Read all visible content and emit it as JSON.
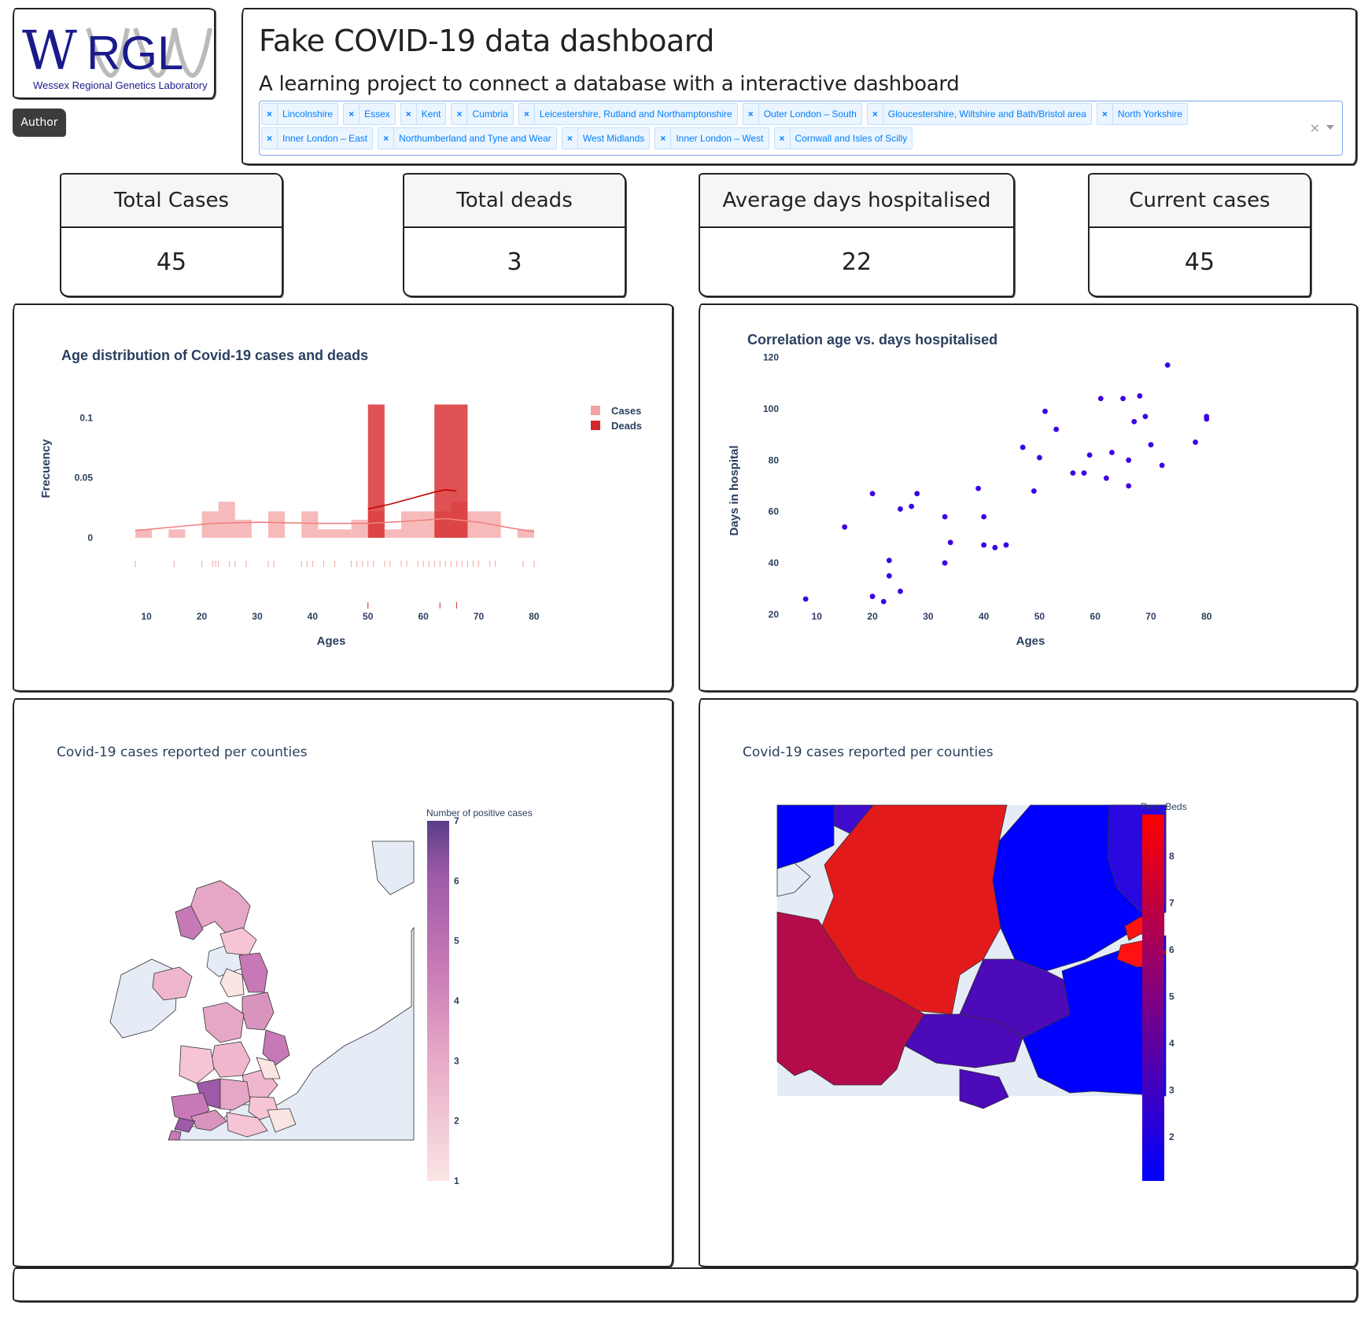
{
  "logo": {
    "text": "WRGL",
    "subtitle": "Wessex Regional Genetics Laboratory"
  },
  "author_button": "Author",
  "header": {
    "title": "Fake COVID-19 data dashboard",
    "subtitle": "A learning project to connect a database with a interactive dashboard"
  },
  "county_select": {
    "selected": [
      "Lincolnshire",
      "Essex",
      "Kent",
      "Cumbria",
      "Leicestershire, Rutland and Northamptonshire",
      "Outer London – South",
      "Gloucestershire, Wiltshire and Bath/Bristol area",
      "North Yorkshire",
      "Inner London – East",
      "Northumberland and Tyne and Wear",
      "West Midlands",
      "Inner London – West",
      "Cornwall and Isles of Scilly"
    ],
    "clear_icon": "×"
  },
  "kpis": [
    {
      "label": "Total Cases",
      "value": "45"
    },
    {
      "label": "Total deads",
      "value": "3"
    },
    {
      "label": "Average days hospitalised",
      "value": "22"
    },
    {
      "label": "Current cases",
      "value": "45"
    }
  ],
  "chart_data": [
    {
      "type": "bar",
      "title": "Age distribution of Covid-19 cases and deads",
      "xlabel": "Ages",
      "ylabel": "Frecuency",
      "xlim": [
        6,
        82
      ],
      "ylim": [
        0,
        0.11
      ],
      "xticks": [
        10,
        20,
        30,
        40,
        50,
        60,
        70,
        80
      ],
      "yticks": [
        0,
        0.05,
        0.1
      ],
      "ytick_labels": [
        "0",
        "0.05",
        "0.1"
      ],
      "legend": "top-right",
      "series": [
        {
          "name": "Cases",
          "color": "#f4a3a3",
          "bins": [
            {
              "x0": 8,
              "x1": 11,
              "y": 0.007
            },
            {
              "x0": 14,
              "x1": 17,
              "y": 0.007
            },
            {
              "x0": 20,
              "x1": 23,
              "y": 0.022
            },
            {
              "x0": 23,
              "x1": 26,
              "y": 0.03
            },
            {
              "x0": 26,
              "x1": 29,
              "y": 0.015
            },
            {
              "x0": 32,
              "x1": 35,
              "y": 0.022
            },
            {
              "x0": 38,
              "x1": 41,
              "y": 0.022
            },
            {
              "x0": 41,
              "x1": 44,
              "y": 0.007
            },
            {
              "x0": 44,
              "x1": 47,
              "y": 0.007
            },
            {
              "x0": 47,
              "x1": 50,
              "y": 0.015
            },
            {
              "x0": 50,
              "x1": 53,
              "y": 0.022
            },
            {
              "x0": 53,
              "x1": 56,
              "y": 0.007
            },
            {
              "x0": 56,
              "x1": 59,
              "y": 0.022
            },
            {
              "x0": 59,
              "x1": 62,
              "y": 0.022
            },
            {
              "x0": 62,
              "x1": 65,
              "y": 0.022
            },
            {
              "x0": 65,
              "x1": 68,
              "y": 0.03
            },
            {
              "x0": 68,
              "x1": 71,
              "y": 0.022
            },
            {
              "x0": 71,
              "x1": 74,
              "y": 0.022
            },
            {
              "x0": 77,
              "x1": 80,
              "y": 0.007
            }
          ],
          "kde": [
            [
              8,
              0.006
            ],
            [
              15,
              0.009
            ],
            [
              22,
              0.012
            ],
            [
              30,
              0.013
            ],
            [
              40,
              0.012
            ],
            [
              50,
              0.012
            ],
            [
              58,
              0.014
            ],
            [
              64,
              0.016
            ],
            [
              70,
              0.013
            ],
            [
              76,
              0.008
            ],
            [
              80,
              0.005
            ]
          ],
          "rug": [
            8,
            15,
            20,
            22,
            22.5,
            23,
            25,
            26,
            28,
            32,
            33,
            38,
            39,
            40,
            42,
            44,
            47,
            48,
            49,
            50,
            51,
            53,
            54,
            56,
            57,
            59,
            60,
            61,
            62,
            63,
            64,
            65,
            66,
            67,
            68,
            69,
            70,
            72,
            73,
            78,
            80
          ]
        },
        {
          "name": "Deads",
          "color": "#d62728",
          "bins": [
            {
              "x0": 50,
              "x1": 53,
              "y": 0.111
            },
            {
              "x0": 62,
              "x1": 68,
              "y": 0.111
            }
          ],
          "kde": [
            [
              50,
              0.024
            ],
            [
              54,
              0.028
            ],
            [
              58,
              0.033
            ],
            [
              62,
              0.038
            ],
            [
              64,
              0.04
            ],
            [
              66,
              0.039
            ]
          ],
          "rug": [
            50,
            63,
            66
          ]
        }
      ]
    },
    {
      "type": "scatter",
      "title": "Correlation age vs. days hospitalised",
      "xlabel": "Ages",
      "ylabel": "Days in hospital",
      "xlim": [
        6,
        83
      ],
      "ylim": [
        18,
        122
      ],
      "xticks": [
        10,
        20,
        30,
        40,
        50,
        60,
        70,
        80
      ],
      "yticks": [
        20,
        40,
        60,
        80,
        100,
        120
      ],
      "color": "#3b00e6",
      "x": [
        8,
        15,
        20,
        20,
        22,
        23,
        23,
        25,
        25,
        27,
        28,
        33,
        33,
        34,
        39,
        40,
        40,
        42,
        44,
        47,
        49,
        50,
        51,
        53,
        56,
        58,
        59,
        61,
        62,
        63,
        65,
        66,
        66,
        67,
        68,
        69,
        70,
        72,
        73,
        78,
        80,
        80
      ],
      "y": [
        26,
        54,
        67,
        27,
        25,
        35,
        41,
        29,
        61,
        62,
        67,
        40,
        58,
        48,
        69,
        58,
        47,
        46,
        47,
        85,
        68,
        81,
        99,
        92,
        75,
        75,
        82,
        104,
        73,
        83,
        104,
        80,
        70,
        95,
        105,
        97,
        86,
        78,
        117,
        87,
        97,
        96
      ]
    }
  ],
  "map_left": {
    "title": "Covid-19 cases reported per counties",
    "colorbar_title": "Number of positive cases",
    "colorbar_ticks": [
      "1",
      "2",
      "3",
      "4",
      "5",
      "6",
      "7"
    ],
    "colorscale": [
      "#fbe5e3",
      "#e6a7c6",
      "#c679b6",
      "#9d5aa8",
      "#5a3e87"
    ]
  },
  "map_right": {
    "title": "Covid-19 cases reported per counties",
    "colorbar_title": "Perc_Beds",
    "colorbar_ticks": [
      "2",
      "3",
      "4",
      "5",
      "6",
      "7",
      "8"
    ],
    "colorscale": [
      "#0000ff",
      "#ff0000"
    ]
  }
}
